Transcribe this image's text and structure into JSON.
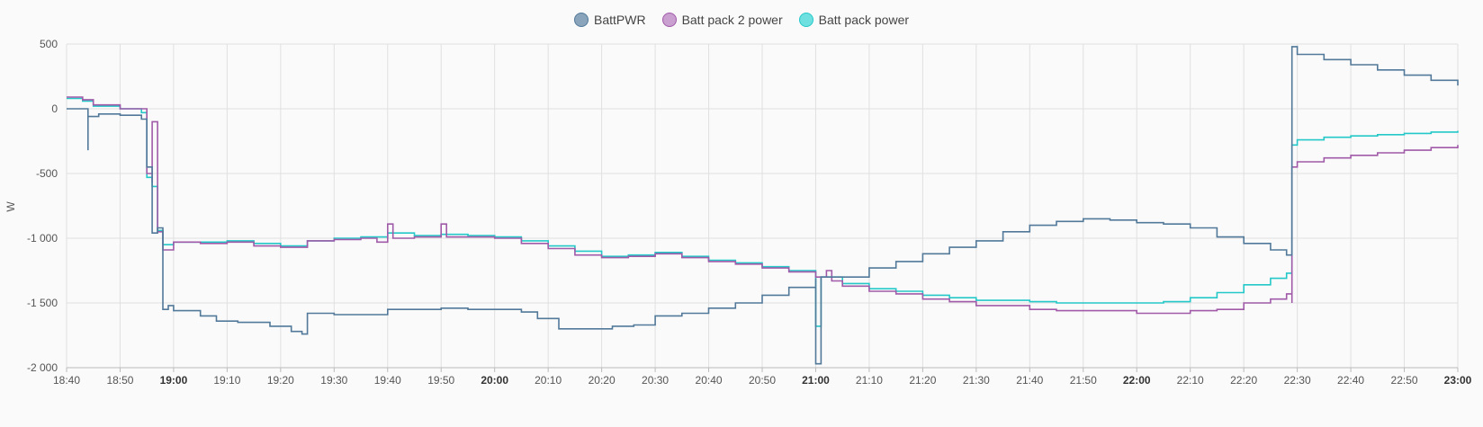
{
  "chart_data": {
    "type": "line",
    "step": true,
    "ylabel": "W",
    "xlabel": "",
    "ylim": [
      -2000,
      500
    ],
    "yticks": [
      500,
      0,
      -500,
      -1000,
      -1500,
      -2000
    ],
    "ytick_labels": [
      "500",
      "0",
      "-500",
      "-1 000",
      "-1 500",
      "-2 000"
    ],
    "xlim": [
      "18:40",
      "23:00"
    ],
    "xticks": [
      "18:40",
      "18:50",
      "19:00",
      "19:10",
      "19:20",
      "19:30",
      "19:40",
      "19:50",
      "20:00",
      "20:10",
      "20:20",
      "20:30",
      "20:40",
      "20:50",
      "21:00",
      "21:10",
      "21:20",
      "21:30",
      "21:40",
      "21:50",
      "22:00",
      "22:10",
      "22:20",
      "22:30",
      "22:40",
      "22:50",
      "23:00"
    ],
    "xticks_bold": [
      "19:00",
      "20:00",
      "21:00",
      "22:00",
      "23:00"
    ],
    "grid": true,
    "legend_position": "top-center",
    "series": [
      {
        "name": "BattPWR",
        "color": "#52799a",
        "fill": "#8aa4bb",
        "points": [
          [
            "18:40",
            0
          ],
          [
            "18:43",
            0
          ],
          [
            "18:44",
            -320
          ],
          [
            "18:44",
            -60
          ],
          [
            "18:46",
            -40
          ],
          [
            "18:50",
            -50
          ],
          [
            "18:54",
            -80
          ],
          [
            "18:55",
            -450
          ],
          [
            "18:56",
            -960
          ],
          [
            "18:57",
            -920
          ],
          [
            "18:58",
            -1550
          ],
          [
            "18:59",
            -1520
          ],
          [
            "19:00",
            -1560
          ],
          [
            "19:05",
            -1600
          ],
          [
            "19:08",
            -1640
          ],
          [
            "19:12",
            -1650
          ],
          [
            "19:18",
            -1680
          ],
          [
            "19:22",
            -1720
          ],
          [
            "19:24",
            -1740
          ],
          [
            "19:25",
            -1580
          ],
          [
            "19:30",
            -1590
          ],
          [
            "19:35",
            -1590
          ],
          [
            "19:40",
            -1550
          ],
          [
            "19:45",
            -1550
          ],
          [
            "19:50",
            -1540
          ],
          [
            "19:55",
            -1550
          ],
          [
            "20:00",
            -1550
          ],
          [
            "20:05",
            -1570
          ],
          [
            "20:08",
            -1620
          ],
          [
            "20:12",
            -1700
          ],
          [
            "20:16",
            -1700
          ],
          [
            "20:22",
            -1680
          ],
          [
            "20:26",
            -1670
          ],
          [
            "20:30",
            -1600
          ],
          [
            "20:35",
            -1580
          ],
          [
            "20:40",
            -1540
          ],
          [
            "20:45",
            -1500
          ],
          [
            "20:50",
            -1440
          ],
          [
            "20:55",
            -1380
          ],
          [
            "21:00",
            -1310
          ],
          [
            "21:00",
            -1970
          ],
          [
            "21:01",
            -1300
          ],
          [
            "21:05",
            -1300
          ],
          [
            "21:10",
            -1230
          ],
          [
            "21:15",
            -1180
          ],
          [
            "21:20",
            -1120
          ],
          [
            "21:25",
            -1070
          ],
          [
            "21:30",
            -1020
          ],
          [
            "21:35",
            -950
          ],
          [
            "21:40",
            -900
          ],
          [
            "21:45",
            -870
          ],
          [
            "21:50",
            -850
          ],
          [
            "21:55",
            -860
          ],
          [
            "22:00",
            -880
          ],
          [
            "22:05",
            -890
          ],
          [
            "22:10",
            -920
          ],
          [
            "22:15",
            -990
          ],
          [
            "22:20",
            -1040
          ],
          [
            "22:25",
            -1090
          ],
          [
            "22:28",
            -1130
          ],
          [
            "22:29",
            480
          ],
          [
            "22:30",
            420
          ],
          [
            "22:35",
            380
          ],
          [
            "22:40",
            340
          ],
          [
            "22:45",
            300
          ],
          [
            "22:50",
            260
          ],
          [
            "22:55",
            220
          ],
          [
            "23:00",
            180
          ]
        ]
      },
      {
        "name": "Batt pack 2 power",
        "color": "#a05aa8",
        "fill": "#c9a0d0",
        "points": [
          [
            "18:40",
            90
          ],
          [
            "18:43",
            70
          ],
          [
            "18:45",
            30
          ],
          [
            "18:50",
            0
          ],
          [
            "18:54",
            0
          ],
          [
            "18:55",
            -500
          ],
          [
            "18:56",
            -570
          ],
          [
            "18:56",
            -100
          ],
          [
            "18:57",
            -950
          ],
          [
            "18:58",
            -1090
          ],
          [
            "19:00",
            -1030
          ],
          [
            "19:05",
            -1040
          ],
          [
            "19:10",
            -1030
          ],
          [
            "19:15",
            -1060
          ],
          [
            "19:20",
            -1070
          ],
          [
            "19:25",
            -1020
          ],
          [
            "19:30",
            -1010
          ],
          [
            "19:35",
            -1000
          ],
          [
            "19:38",
            -1030
          ],
          [
            "19:40",
            -890
          ],
          [
            "19:41",
            -1000
          ],
          [
            "19:45",
            -990
          ],
          [
            "19:50",
            -890
          ],
          [
            "19:51",
            -990
          ],
          [
            "19:55",
            -990
          ],
          [
            "20:00",
            -1000
          ],
          [
            "20:05",
            -1040
          ],
          [
            "20:10",
            -1080
          ],
          [
            "20:15",
            -1130
          ],
          [
            "20:20",
            -1150
          ],
          [
            "20:25",
            -1140
          ],
          [
            "20:30",
            -1120
          ],
          [
            "20:35",
            -1150
          ],
          [
            "20:40",
            -1180
          ],
          [
            "20:45",
            -1200
          ],
          [
            "20:50",
            -1230
          ],
          [
            "20:55",
            -1260
          ],
          [
            "21:00",
            -1300
          ],
          [
            "21:02",
            -1250
          ],
          [
            "21:03",
            -1330
          ],
          [
            "21:05",
            -1370
          ],
          [
            "21:10",
            -1410
          ],
          [
            "21:15",
            -1430
          ],
          [
            "21:20",
            -1470
          ],
          [
            "21:25",
            -1490
          ],
          [
            "21:30",
            -1520
          ],
          [
            "21:35",
            -1520
          ],
          [
            "21:40",
            -1550
          ],
          [
            "21:45",
            -1560
          ],
          [
            "21:50",
            -1560
          ],
          [
            "21:55",
            -1560
          ],
          [
            "22:00",
            -1580
          ],
          [
            "22:05",
            -1580
          ],
          [
            "22:10",
            -1560
          ],
          [
            "22:15",
            -1550
          ],
          [
            "22:20",
            -1500
          ],
          [
            "22:25",
            -1470
          ],
          [
            "22:28",
            -1430
          ],
          [
            "22:29",
            -1500
          ],
          [
            "22:29",
            -450
          ],
          [
            "22:30",
            -410
          ],
          [
            "22:35",
            -380
          ],
          [
            "22:40",
            -360
          ],
          [
            "22:45",
            -340
          ],
          [
            "22:50",
            -320
          ],
          [
            "22:55",
            -300
          ],
          [
            "23:00",
            -280
          ]
        ]
      },
      {
        "name": "Batt pack power",
        "color": "#24c8c8",
        "fill": "#6fe0e0",
        "points": [
          [
            "18:40",
            80
          ],
          [
            "18:43",
            60
          ],
          [
            "18:45",
            20
          ],
          [
            "18:50",
            0
          ],
          [
            "18:54",
            -30
          ],
          [
            "18:55",
            -530
          ],
          [
            "18:56",
            -600
          ],
          [
            "18:57",
            -940
          ],
          [
            "18:58",
            -1050
          ],
          [
            "19:00",
            -1030
          ],
          [
            "19:05",
            -1030
          ],
          [
            "19:10",
            -1020
          ],
          [
            "19:15",
            -1040
          ],
          [
            "19:20",
            -1060
          ],
          [
            "19:25",
            -1020
          ],
          [
            "19:30",
            -1000
          ],
          [
            "19:35",
            -990
          ],
          [
            "19:40",
            -960
          ],
          [
            "19:45",
            -980
          ],
          [
            "19:50",
            -970
          ],
          [
            "19:55",
            -980
          ],
          [
            "20:00",
            -990
          ],
          [
            "20:05",
            -1020
          ],
          [
            "20:10",
            -1060
          ],
          [
            "20:15",
            -1100
          ],
          [
            "20:20",
            -1140
          ],
          [
            "20:25",
            -1130
          ],
          [
            "20:30",
            -1110
          ],
          [
            "20:35",
            -1140
          ],
          [
            "20:40",
            -1170
          ],
          [
            "20:45",
            -1190
          ],
          [
            "20:50",
            -1220
          ],
          [
            "20:55",
            -1250
          ],
          [
            "21:00",
            -1280
          ],
          [
            "21:00",
            -1680
          ],
          [
            "21:01",
            -1300
          ],
          [
            "21:05",
            -1350
          ],
          [
            "21:10",
            -1390
          ],
          [
            "21:15",
            -1410
          ],
          [
            "21:20",
            -1440
          ],
          [
            "21:25",
            -1460
          ],
          [
            "21:30",
            -1480
          ],
          [
            "21:35",
            -1480
          ],
          [
            "21:40",
            -1490
          ],
          [
            "21:45",
            -1500
          ],
          [
            "21:50",
            -1500
          ],
          [
            "21:55",
            -1500
          ],
          [
            "22:00",
            -1500
          ],
          [
            "22:05",
            -1490
          ],
          [
            "22:10",
            -1460
          ],
          [
            "22:15",
            -1420
          ],
          [
            "22:20",
            -1360
          ],
          [
            "22:25",
            -1310
          ],
          [
            "22:28",
            -1270
          ],
          [
            "22:29",
            -1250
          ],
          [
            "22:29",
            -280
          ],
          [
            "22:30",
            -240
          ],
          [
            "22:35",
            -220
          ],
          [
            "22:40",
            -210
          ],
          [
            "22:45",
            -200
          ],
          [
            "22:50",
            -190
          ],
          [
            "22:55",
            -180
          ],
          [
            "23:00",
            -170
          ]
        ]
      }
    ]
  }
}
